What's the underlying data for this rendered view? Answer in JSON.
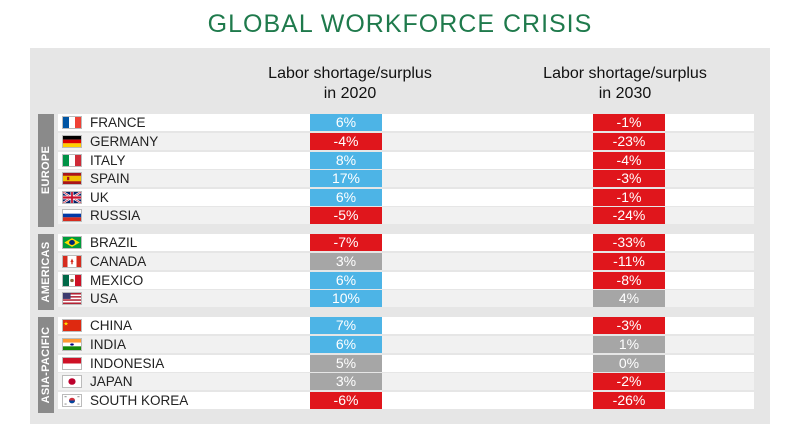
{
  "title": "GLOBAL WORKFORCE CRISIS",
  "colors": {
    "positive": "#4db4e6",
    "negative": "#e0161c",
    "neutral": "#a6a6a6",
    "title": "#1f7a4c"
  },
  "chart_data": {
    "type": "table",
    "columns": [
      "Labor shortage/surplus in 2020",
      "Labor shortage/surplus in 2030"
    ],
    "column_lines": [
      [
        "Labor shortage/surplus",
        "in 2020"
      ],
      [
        "Labor shortage/surplus",
        "in 2030"
      ]
    ],
    "regions": [
      {
        "name": "EUROPE",
        "rows": [
          {
            "country": "FRANCE",
            "flag": "france-flag-icon",
            "v2020": "6%",
            "v2030": "-1%"
          },
          {
            "country": "GERMANY",
            "flag": "germany-flag-icon",
            "v2020": "-4%",
            "v2030": "-23%"
          },
          {
            "country": "ITALY",
            "flag": "italy-flag-icon",
            "v2020": "8%",
            "v2030": "-4%"
          },
          {
            "country": "SPAIN",
            "flag": "spain-flag-icon",
            "v2020": "17%",
            "v2030": "-3%"
          },
          {
            "country": "UK",
            "flag": "uk-flag-icon",
            "v2020": "6%",
            "v2030": "-1%"
          },
          {
            "country": "RUSSIA",
            "flag": "russia-flag-icon",
            "v2020": "-5%",
            "v2030": "-24%"
          }
        ]
      },
      {
        "name": "AMERICAS",
        "rows": [
          {
            "country": "BRAZIL",
            "flag": "brazil-flag-icon",
            "v2020": "-7%",
            "v2030": "-33%"
          },
          {
            "country": "CANADA",
            "flag": "canada-flag-icon",
            "v2020": "3%",
            "v2030": "-11%"
          },
          {
            "country": "MEXICO",
            "flag": "mexico-flag-icon",
            "v2020": "6%",
            "v2030": "-8%"
          },
          {
            "country": "USA",
            "flag": "usa-flag-icon",
            "v2020": "10%",
            "v2030": "4%"
          }
        ]
      },
      {
        "name": "ASIA-PACIFIC",
        "rows": [
          {
            "country": "CHINA",
            "flag": "china-flag-icon",
            "v2020": "7%",
            "v2030": "-3%"
          },
          {
            "country": "INDIA",
            "flag": "india-flag-icon",
            "v2020": "6%",
            "v2030": "1%"
          },
          {
            "country": "INDONESIA",
            "flag": "indonesia-flag-icon",
            "v2020": "5%",
            "v2030": "0%"
          },
          {
            "country": "JAPAN",
            "flag": "japan-flag-icon",
            "v2020": "3%",
            "v2030": "-2%"
          },
          {
            "country": "SOUTH KOREA",
            "flag": "south-korea-flag-icon",
            "v2020": "-6%",
            "v2030": "-26%"
          }
        ]
      }
    ],
    "cell_colors": {
      "v2020": [
        "positive",
        "negative",
        "positive",
        "positive",
        "positive",
        "negative",
        "negative",
        "neutral",
        "positive",
        "positive",
        "positive",
        "positive",
        "neutral",
        "neutral",
        "negative"
      ],
      "v2030": [
        "negative",
        "negative",
        "negative",
        "negative",
        "negative",
        "negative",
        "negative",
        "negative",
        "negative",
        "neutral",
        "negative",
        "neutral",
        "neutral",
        "negative",
        "negative"
      ]
    }
  }
}
